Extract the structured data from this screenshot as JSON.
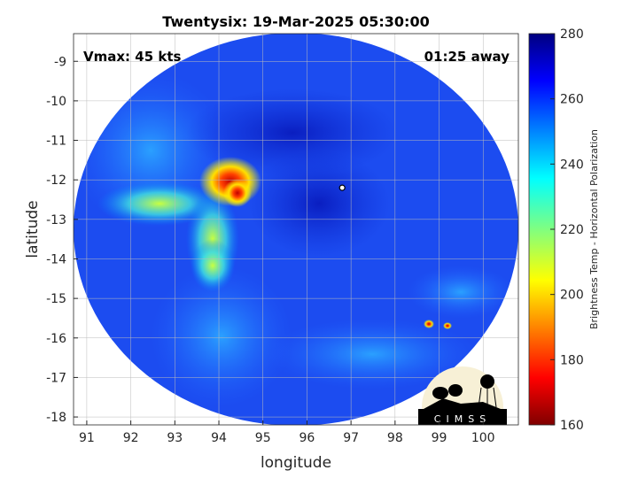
{
  "chart_data": {
    "type": "heatmap",
    "title": "Twentysix: 19-Mar-2025 05:30:00",
    "xlabel": "longitude",
    "ylabel": "latitude",
    "xlim": [
      90.7,
      100.8
    ],
    "ylim": [
      -18.2,
      -8.3
    ],
    "xticks": [
      91,
      92,
      93,
      94,
      95,
      96,
      97,
      98,
      99,
      100
    ],
    "yticks": [
      -9,
      -10,
      -11,
      -12,
      -13,
      -14,
      -15,
      -16,
      -17,
      -18
    ],
    "grid": true,
    "annotations": {
      "vmax": "Vmax: 45 kts",
      "time_away": "01:25 away"
    },
    "storm_center": {
      "lon": 96.8,
      "lat": -12.2
    },
    "colorbar": {
      "label": "Brightness Temp - Horizontal Polarization",
      "range": [
        160,
        280
      ],
      "ticks": [
        160,
        180,
        200,
        220,
        240,
        260,
        280
      ],
      "colormap": "jet"
    }
  },
  "logo": {
    "text": "CIMSS"
  }
}
